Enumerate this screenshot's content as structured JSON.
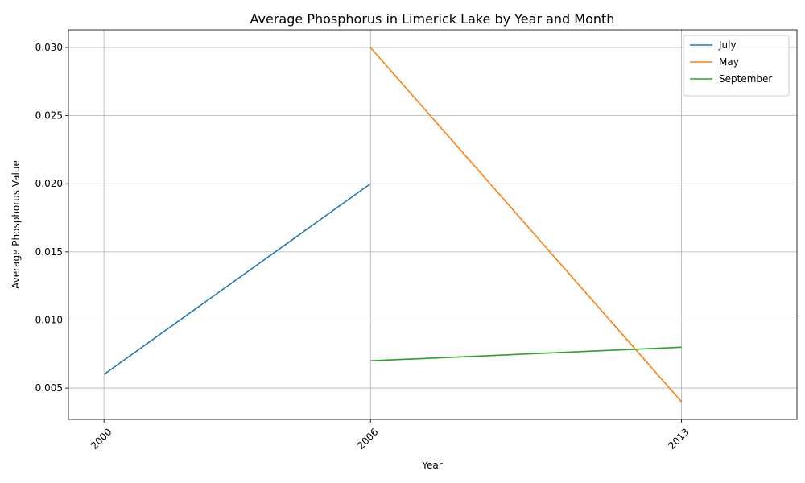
{
  "chart_data": {
    "type": "line",
    "title": "Average Phosphorus in Limerick Lake by Year and Month",
    "xlabel": "Year",
    "ylabel": "Average Phosphorus Value",
    "xlim": [
      1999.2,
      2015.6
    ],
    "ylim": [
      0.0027,
      0.0313
    ],
    "x_ticks": [
      2000,
      2006,
      2013
    ],
    "x_tick_labels": [
      "2000",
      "2006",
      "2013"
    ],
    "y_ticks": [
      0.005,
      0.01,
      0.015,
      0.02,
      0.025,
      0.03
    ],
    "y_tick_labels": [
      "0.005",
      "0.010",
      "0.015",
      "0.020",
      "0.025",
      "0.030"
    ],
    "grid": true,
    "legend_position": "top-right",
    "series": [
      {
        "name": "July",
        "color": "#1f77b4",
        "x": [
          2000,
          2006
        ],
        "y": [
          0.006,
          0.02
        ]
      },
      {
        "name": "May",
        "color": "#ff7f0e",
        "x": [
          2006,
          2013
        ],
        "y": [
          0.03,
          0.004
        ]
      },
      {
        "name": "September",
        "color": "#2ca02c",
        "x": [
          2006,
          2013
        ],
        "y": [
          0.007,
          0.008
        ]
      }
    ]
  }
}
